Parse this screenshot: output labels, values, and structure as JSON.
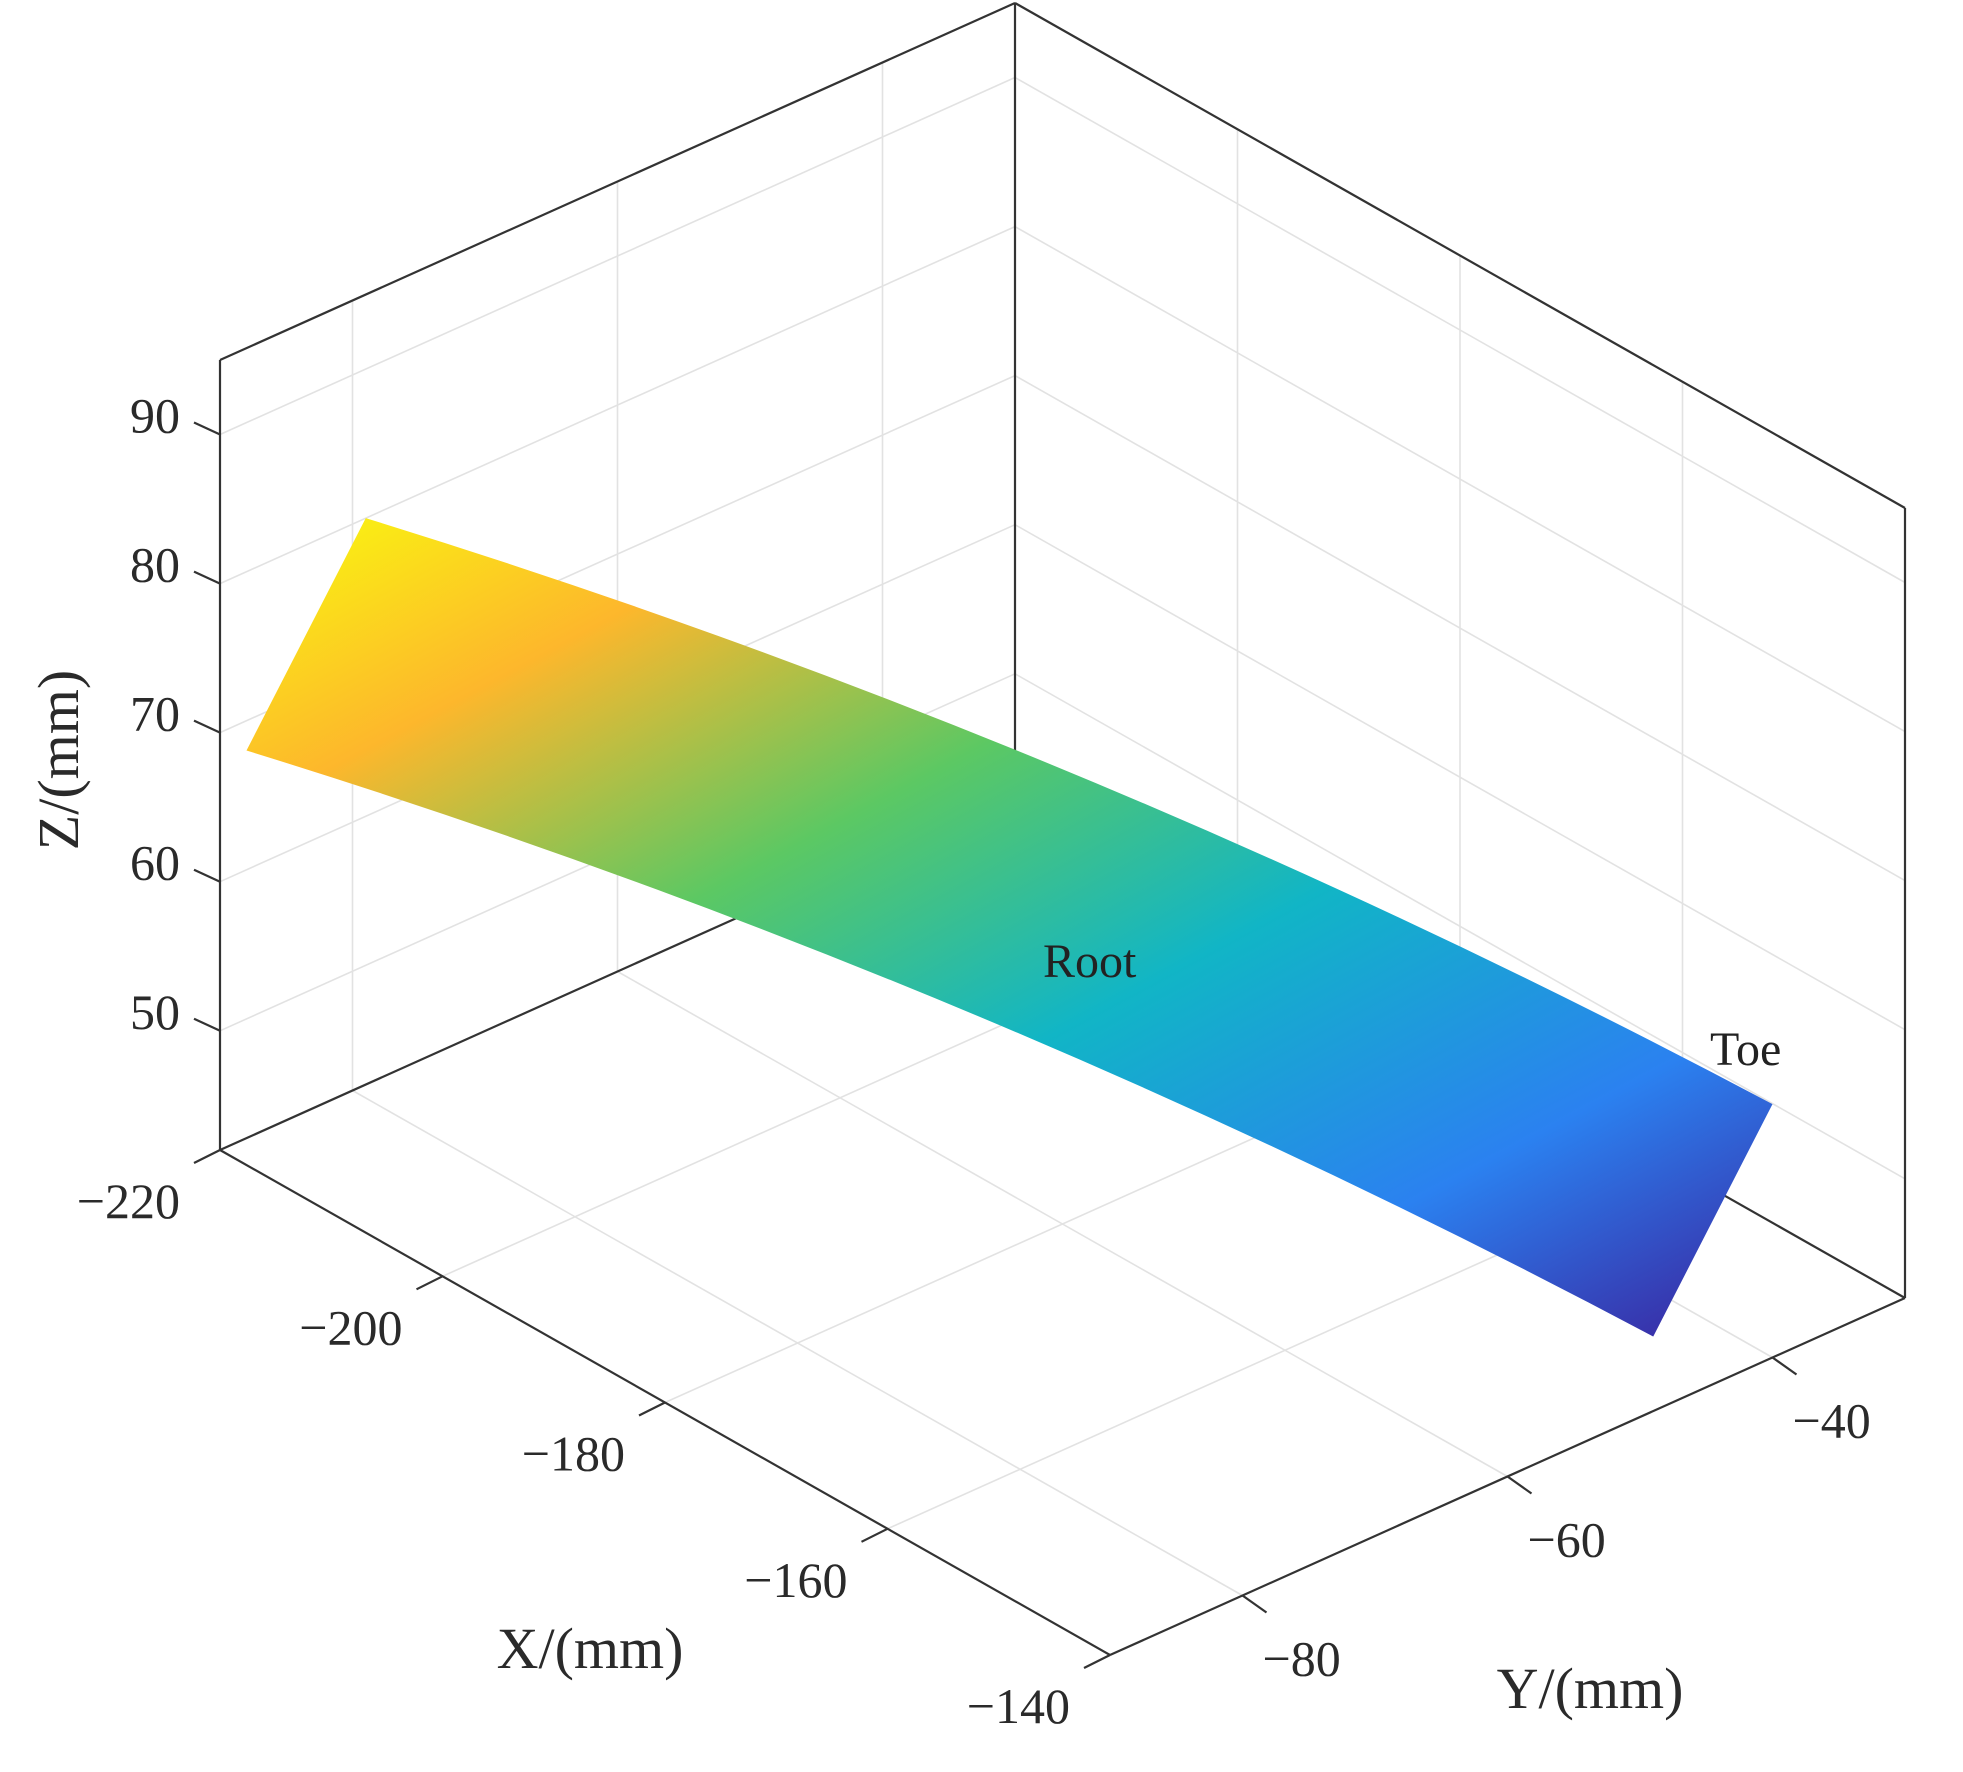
{
  "chart_data": {
    "type": "surface",
    "xlabel": "X/(mm)",
    "ylabel": "Y/(mm)",
    "zlabel": "Z/(mm)",
    "xlim": [
      -220,
      -140
    ],
    "ylim": [
      -90,
      -30
    ],
    "zlim": [
      42,
      95
    ],
    "xticks": [
      -220,
      -200,
      -180,
      -160,
      -140
    ],
    "yticks": [
      -80,
      -60,
      -40
    ],
    "zticks": [
      50,
      60,
      70,
      80,
      90
    ],
    "xtick_labels": [
      "−220",
      "−200",
      "−180",
      "−160",
      "−140"
    ],
    "ytick_labels": [
      "−80",
      "−60",
      "−40"
    ],
    "ztick_labels": [
      "50",
      "60",
      "70",
      "80",
      "90"
    ],
    "grid": true,
    "colormap": "parula",
    "surface_corners": [
      {
        "x": -220,
        "y": -79,
        "z": 80
      },
      {
        "x": -220,
        "y": -88,
        "z": 68
      },
      {
        "x": -140,
        "y": -40,
        "z": 59
      },
      {
        "x": -140,
        "y": -49,
        "z": 47
      }
    ],
    "annotations": [
      {
        "text": "Root"
      },
      {
        "text": "Toe"
      }
    ]
  }
}
